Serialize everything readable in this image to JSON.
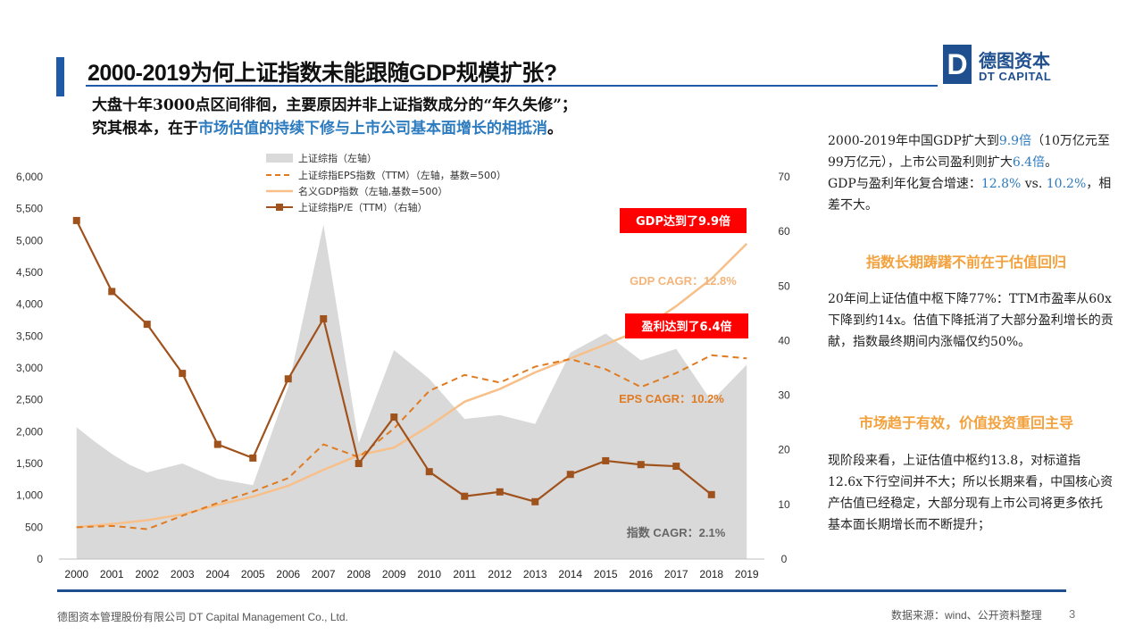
{
  "title": "2000-2019为何上证指数未能跟随GDP规模扩张?",
  "logo": {
    "mark": "D",
    "cn": "德图资本",
    "en": "DT CAPITAL"
  },
  "subtitle": {
    "line1": "大盘十年3000点区间徘徊，主要原因并非上证指数成分的“年久失修”；",
    "line2_pre": "究其根本，在于",
    "line2_hl": "市场估值的持续下修与上市公司基本面增长的相抵消",
    "line2_post": "。"
  },
  "right": {
    "p1": {
      "a": "2000-2019年中国GDP扩大到",
      "b": "9.9倍",
      "c": "（10万亿元至99万亿元），上市公司盈利则扩大",
      "d": "6.4倍",
      "e": "。",
      "f": "GDP与盈利年化复合增速：",
      "g": "12.8%",
      "h": " vs. ",
      "i": "10.2%",
      "j": "，相差不大。"
    },
    "head1": "指数长期踌躇不前在于估值回归",
    "p2": "20年间上证估值中枢下降77%：TTM市盈率从60x下降到约14x。估值下降抵消了大部分盈利增长的贡献，指数最终期间内涨幅仅约50%。",
    "head2": "市场趋于有效，价值投资重回主导",
    "p3": "现阶段来看，上证估值中枢约13.8，对标道指12.6x下行空间并不大；所以长期来看，中国核心资产估值已经稳定，大部分现有上市公司将更多依托基本面长期增长而不断提升；"
  },
  "footer": {
    "left": "德图资本管理股份有限公司  DT Capital Management Co., Ltd.",
    "source": "数据来源：wind、公开资料整理",
    "page": "3"
  },
  "colors": {
    "accent_blue": "#1f5aa6",
    "orange": "#f2a13c",
    "brown": "#a0521d",
    "area": "#d9d9d9",
    "gdp": "#f7c08a",
    "red_box": "#ff0000"
  },
  "chart_data": {
    "type": "area+line",
    "categories": [
      "2000",
      "2001",
      "2002",
      "2003",
      "2004",
      "2005",
      "2006",
      "2007",
      "2008",
      "2009",
      "2010",
      "2011",
      "2012",
      "2013",
      "2014",
      "2015",
      "2016",
      "2017",
      "2018",
      "2019"
    ],
    "left_axis": {
      "min": 0,
      "max": 6000,
      "ticks": [
        "0",
        "500",
        "1,000",
        "1,500",
        "2,000",
        "2,500",
        "3,000",
        "3,500",
        "4,000",
        "4,500",
        "5,000",
        "5,500",
        "6,000"
      ]
    },
    "right_axis": {
      "min": 0,
      "max": 70,
      "ticks": [
        "0",
        "10",
        "20",
        "30",
        "40",
        "50",
        "60",
        "70"
      ]
    },
    "series": [
      {
        "name": "上证综指（左轴）",
        "type": "area",
        "axis": "left",
        "x": [
          2000,
          2000.5,
          2001,
          2001.5,
          2002,
          2003,
          2004,
          2005,
          2006,
          2007,
          2008,
          2009,
          2010,
          2011,
          2012,
          2013,
          2014,
          2015,
          2016,
          2017,
          2018,
          2019
        ],
        "values": [
          2070,
          1850,
          1650,
          1480,
          1360,
          1500,
          1260,
          1160,
          2700,
          5250,
          1820,
          3280,
          2830,
          2200,
          2260,
          2120,
          3240,
          3540,
          3120,
          3300,
          2480,
          3050
        ]
      },
      {
        "name": "上证综指EPS指数（TTM）（左轴，基数=500）",
        "type": "dashed-line",
        "axis": "left",
        "values": [
          500,
          520,
          470,
          680,
          880,
          1060,
          1270,
          1800,
          1600,
          2050,
          2640,
          2890,
          2770,
          3020,
          3140,
          2980,
          2700,
          2920,
          3200,
          3150
        ]
      },
      {
        "name": "名义GDP指数（左轴,基数=500）",
        "type": "line",
        "axis": "left",
        "values": [
          500,
          550,
          610,
          700,
          850,
          980,
          1150,
          1400,
          1630,
          1750,
          2090,
          2470,
          2670,
          2930,
          3150,
          3370,
          3600,
          3970,
          4400,
          4950
        ]
      },
      {
        "name": "上证综指P/E（TTM）（右轴）",
        "type": "line-marker",
        "axis": "right",
        "values": [
          62,
          49,
          43,
          34,
          21,
          18.5,
          33,
          44,
          17.5,
          26,
          16,
          11.5,
          12.3,
          10.5,
          15.5,
          18,
          17.3,
          17,
          11.8,
          null
        ]
      }
    ],
    "annotations": {
      "gdp_box": "GDP达到了9.9倍",
      "gdp_cagr": "GDP CAGR：12.8%",
      "eps_box": "盈利达到了6.4倍",
      "eps_cagr": "EPS CAGR：10.2%",
      "index_cagr": "指数 CAGR：2.1%"
    }
  }
}
